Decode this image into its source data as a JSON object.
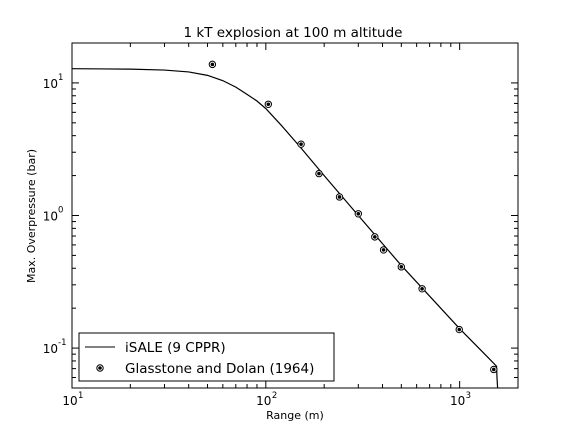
{
  "chart_data": {
    "type": "line",
    "title": "1 kT explosion at 100 m altitude",
    "xlabel": "Range (m)",
    "ylabel": "Max. Overpressure (bar)",
    "xscale": "log",
    "yscale": "log",
    "xlim": [
      10,
      2000
    ],
    "ylim": [
      0.05,
      20
    ],
    "x_ticks": [
      {
        "value": 10,
        "base": "10",
        "exp": "1"
      },
      {
        "value": 100,
        "base": "10",
        "exp": "2"
      },
      {
        "value": 1000,
        "base": "10",
        "exp": "3"
      }
    ],
    "y_ticks": [
      {
        "value": 0.1,
        "base": "10",
        "exp": "-1"
      },
      {
        "value": 1,
        "base": "10",
        "exp": "0"
      },
      {
        "value": 10,
        "base": "10",
        "exp": "1"
      }
    ],
    "grid": false,
    "legend_position": "lower-left",
    "series": [
      {
        "name": "iSALE (9 CPPR)",
        "style": "line",
        "color": "#000000",
        "x": [
          10,
          15,
          20,
          30,
          40,
          50,
          60,
          70,
          80,
          90,
          100,
          120,
          150,
          200,
          300,
          500,
          1000,
          1400,
          1550,
          1560,
          1570
        ],
        "y": [
          12.8,
          12.75,
          12.7,
          12.5,
          12.1,
          11.4,
          10.4,
          9.3,
          8.2,
          7.3,
          6.4,
          4.8,
          3.3,
          2.0,
          1.0,
          0.42,
          0.14,
          0.085,
          0.073,
          0.058,
          0.05
        ]
      },
      {
        "name": "Glasstone and Dolan (1964)",
        "style": "scatter",
        "color": "#000000",
        "x": [
          53,
          103,
          152,
          188,
          240,
          300,
          365,
          405,
          500,
          640,
          995,
          1500
        ],
        "y": [
          13.8,
          6.9,
          3.45,
          2.07,
          1.38,
          1.03,
          0.69,
          0.55,
          0.41,
          0.28,
          0.138,
          0.069
        ]
      }
    ]
  }
}
